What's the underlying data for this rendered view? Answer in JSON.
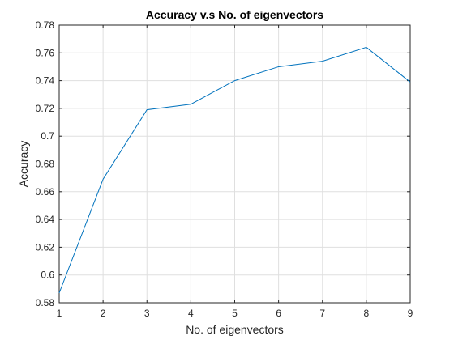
{
  "chart_data": {
    "type": "line",
    "title": "Accuracy v.s No. of eigenvectors",
    "xlabel": "No. of eigenvectors",
    "ylabel": "Accuracy",
    "x": [
      1,
      2,
      3,
      4,
      5,
      6,
      7,
      8,
      9
    ],
    "series": [
      {
        "values": [
          0.587,
          0.669,
          0.719,
          0.723,
          0.74,
          0.75,
          0.754,
          0.764,
          0.739
        ]
      }
    ],
    "xlim": [
      1,
      9
    ],
    "ylim": [
      0.58,
      0.78
    ],
    "xticks": [
      "1",
      "2",
      "3",
      "4",
      "5",
      "6",
      "7",
      "8",
      "9"
    ],
    "yticks": [
      "0.58",
      "0.6",
      "0.62",
      "0.64",
      "0.66",
      "0.68",
      "0.7",
      "0.72",
      "0.74",
      "0.76",
      "0.78"
    ],
    "grid": true,
    "line_color": "#0072BD",
    "grid_color": "#DFDFDF",
    "axis_color": "#262626"
  }
}
